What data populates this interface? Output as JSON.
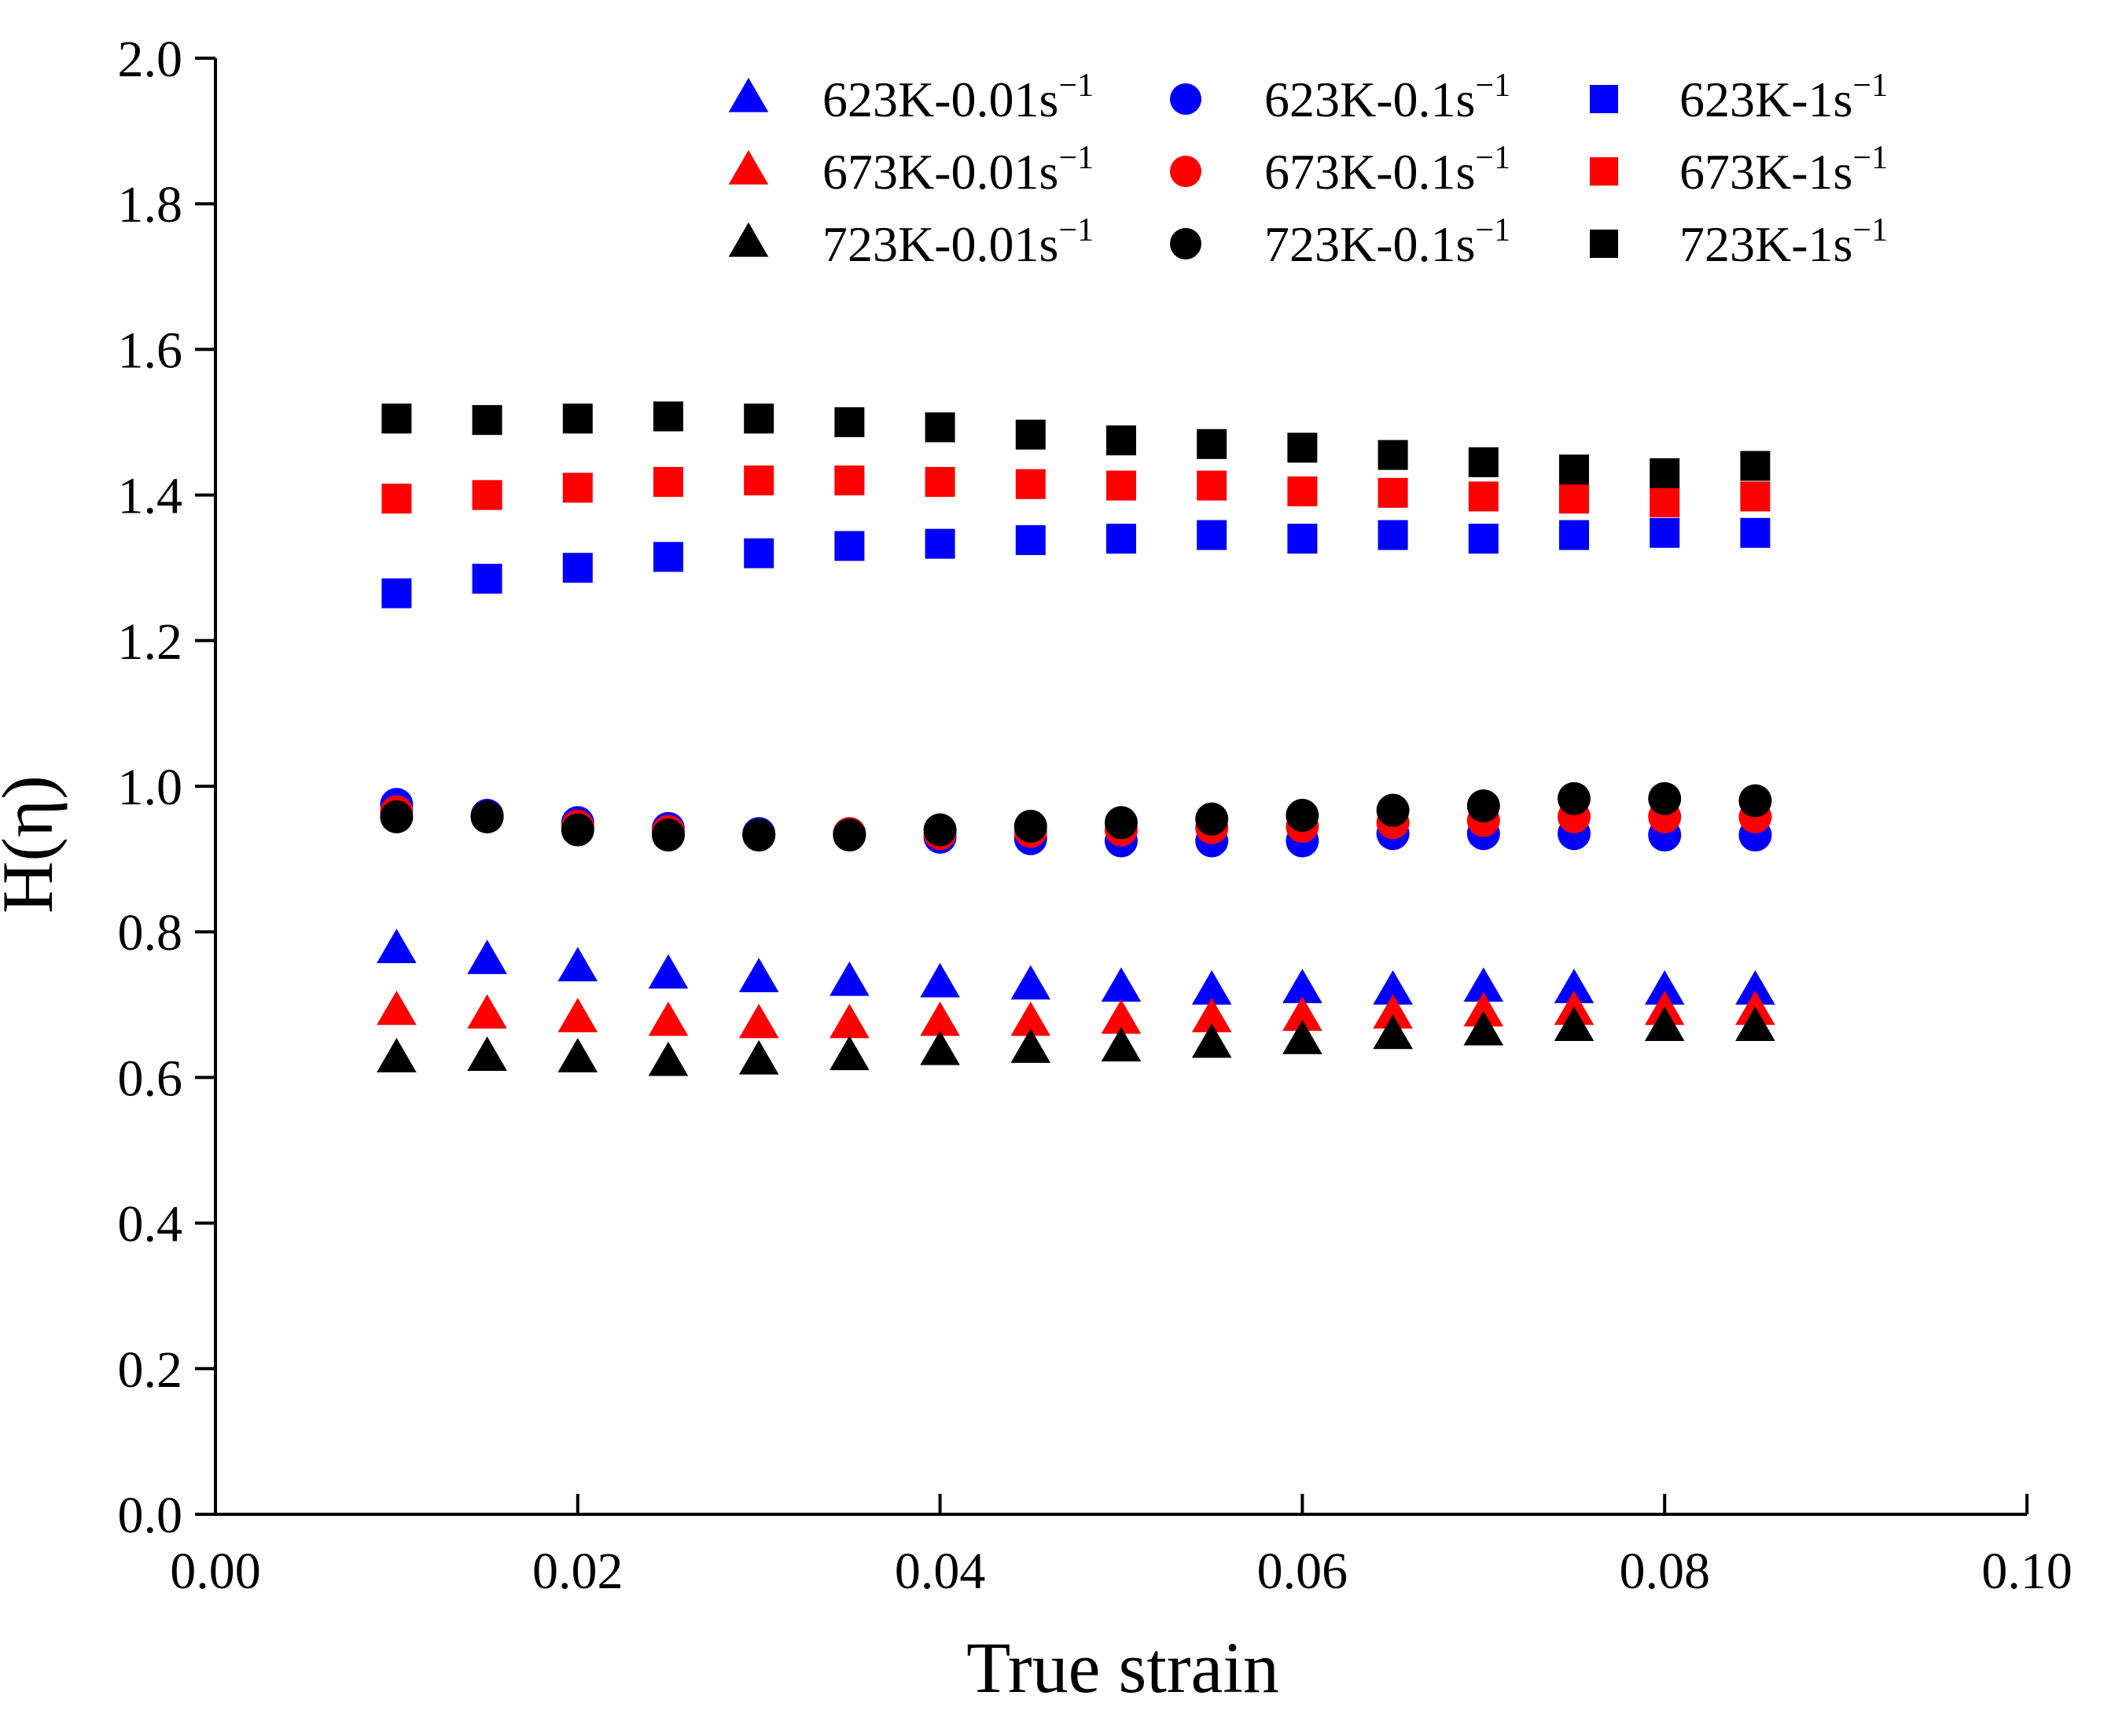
{
  "chart_data": {
    "type": "scatter",
    "title": "",
    "xlabel": "True strain",
    "ylabel": "H(η)",
    "xlim": [
      0.0,
      0.1
    ],
    "ylim": [
      0.0,
      2.0
    ],
    "x_ticks": [
      "0.00",
      "0.02",
      "0.04",
      "0.06",
      "0.08",
      "0.10"
    ],
    "y_ticks": [
      "0.0",
      "0.2",
      "0.4",
      "0.6",
      "0.8",
      "1.0",
      "1.2",
      "1.4",
      "1.6",
      "1.8",
      "2.0"
    ],
    "grid": false,
    "legend_position": "top-right",
    "x": [
      0.01,
      0.015,
      0.02,
      0.025,
      0.03,
      0.035,
      0.04,
      0.045,
      0.05,
      0.055,
      0.06,
      0.065,
      0.07,
      0.075,
      0.08,
      0.085
    ],
    "series": [
      {
        "name": "623K-0.01s",
        "sup": "−1",
        "marker": "triangle",
        "color": "#0000ff",
        "values": [
          0.775,
          0.76,
          0.75,
          0.74,
          0.735,
          0.73,
          0.728,
          0.725,
          0.722,
          0.718,
          0.72,
          0.718,
          0.722,
          0.72,
          0.718,
          0.718
        ]
      },
      {
        "name": "673K-0.01s",
        "sup": "−1",
        "marker": "triangle",
        "color": "#ff0000",
        "values": [
          0.69,
          0.685,
          0.68,
          0.675,
          0.672,
          0.672,
          0.675,
          0.675,
          0.678,
          0.68,
          0.682,
          0.685,
          0.688,
          0.69,
          0.69,
          0.69
        ]
      },
      {
        "name": "723K-0.01s",
        "sup": "−1",
        "marker": "triangle",
        "color": "#000000",
        "values": [
          0.625,
          0.627,
          0.625,
          0.62,
          0.622,
          0.628,
          0.635,
          0.638,
          0.64,
          0.645,
          0.65,
          0.657,
          0.662,
          0.668,
          0.668,
          0.668
        ]
      },
      {
        "name": "623K-0.1s",
        "sup": "−1",
        "marker": "circle",
        "color": "#0000ff",
        "values": [
          0.975,
          0.96,
          0.95,
          0.942,
          0.935,
          0.935,
          0.93,
          0.928,
          0.925,
          0.925,
          0.925,
          0.935,
          0.935,
          0.935,
          0.933,
          0.933
        ]
      },
      {
        "name": "673K-0.1s",
        "sup": "−1",
        "marker": "circle",
        "color": "#ff0000",
        "values": [
          0.965,
          0.958,
          0.945,
          0.938,
          0.933,
          0.935,
          0.935,
          0.938,
          0.94,
          0.943,
          0.945,
          0.95,
          0.953,
          0.958,
          0.958,
          0.958
        ]
      },
      {
        "name": "723K-0.1s",
        "sup": "−1",
        "marker": "circle",
        "color": "#000000",
        "values": [
          0.958,
          0.958,
          0.94,
          0.933,
          0.933,
          0.933,
          0.94,
          0.945,
          0.95,
          0.955,
          0.96,
          0.967,
          0.973,
          0.983,
          0.983,
          0.98
        ]
      },
      {
        "name": "623K-1s",
        "sup": "−1",
        "marker": "square",
        "color": "#0000ff",
        "values": [
          1.265,
          1.285,
          1.3,
          1.315,
          1.32,
          1.33,
          1.333,
          1.338,
          1.34,
          1.345,
          1.34,
          1.345,
          1.34,
          1.345,
          1.348,
          1.348
        ]
      },
      {
        "name": "673K-1s",
        "sup": "−1",
        "marker": "square",
        "color": "#ff0000",
        "values": [
          1.395,
          1.4,
          1.41,
          1.418,
          1.42,
          1.42,
          1.418,
          1.415,
          1.413,
          1.413,
          1.405,
          1.403,
          1.398,
          1.395,
          1.39,
          1.398
        ]
      },
      {
        "name": "723K-1s",
        "sup": "−1",
        "marker": "square",
        "color": "#000000",
        "values": [
          1.505,
          1.503,
          1.505,
          1.508,
          1.505,
          1.5,
          1.493,
          1.483,
          1.475,
          1.47,
          1.465,
          1.455,
          1.445,
          1.435,
          1.43,
          1.44
        ]
      }
    ]
  }
}
